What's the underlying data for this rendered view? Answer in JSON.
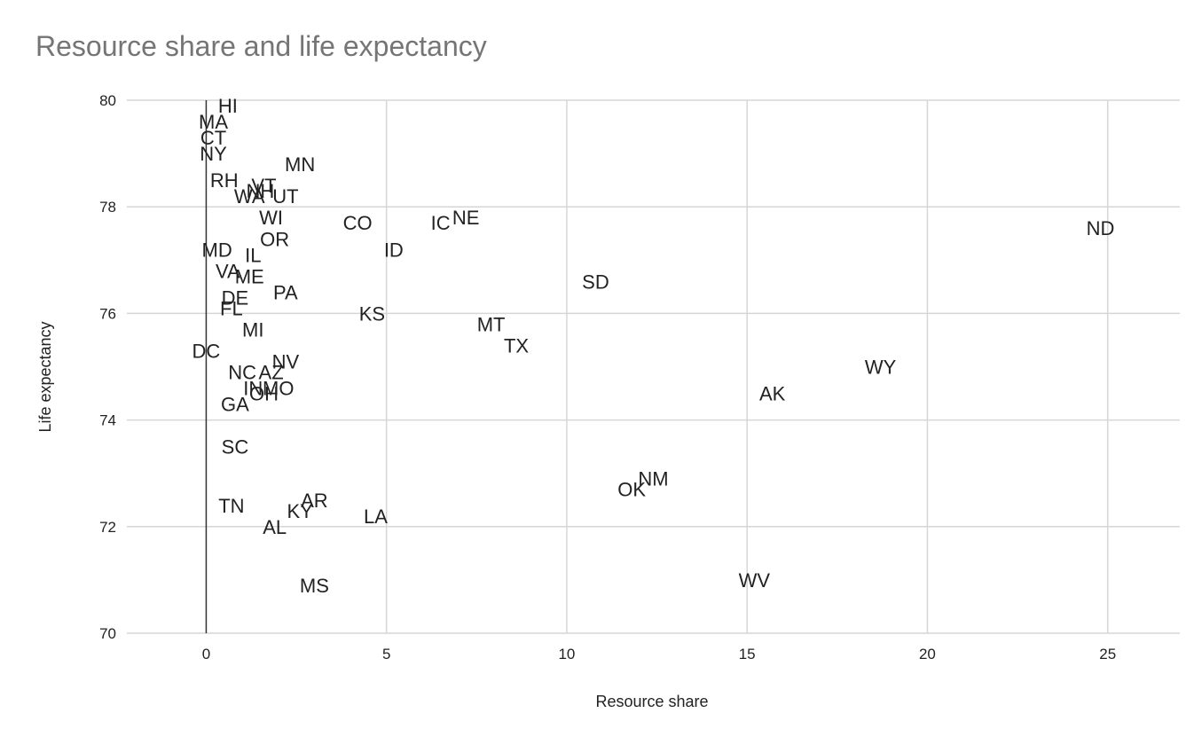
{
  "chart_data": {
    "type": "scatter",
    "title": "Resource share and life expectancy",
    "xlabel": "Resource share",
    "ylabel": "Life expectancy",
    "xlim": [
      -2.2,
      27
    ],
    "ylim": [
      70,
      80
    ],
    "xticks": [
      0,
      5,
      10,
      15,
      20,
      25
    ],
    "yticks": [
      70,
      72,
      74,
      76,
      78,
      80
    ],
    "grid": true,
    "legend": "none",
    "points": [
      {
        "label": "HI",
        "x": 0.6,
        "y": 79.9
      },
      {
        "label": "MA",
        "x": 0.2,
        "y": 79.6
      },
      {
        "label": "CT",
        "x": 0.2,
        "y": 79.3
      },
      {
        "label": "NY",
        "x": 0.2,
        "y": 79.0
      },
      {
        "label": "RH",
        "x": 0.5,
        "y": 78.5
      },
      {
        "label": "MN",
        "x": 2.6,
        "y": 78.8
      },
      {
        "label": "VT",
        "x": 1.6,
        "y": 78.4
      },
      {
        "label": "NH",
        "x": 1.5,
        "y": 78.3
      },
      {
        "label": "WA",
        "x": 1.2,
        "y": 78.2
      },
      {
        "label": "UT",
        "x": 2.2,
        "y": 78.2
      },
      {
        "label": "WI",
        "x": 1.8,
        "y": 77.8
      },
      {
        "label": "CO",
        "x": 4.2,
        "y": 77.7
      },
      {
        "label": "IC",
        "x": 6.5,
        "y": 77.7
      },
      {
        "label": "NE",
        "x": 7.2,
        "y": 77.8
      },
      {
        "label": "ND",
        "x": 24.8,
        "y": 77.6
      },
      {
        "label": "OR",
        "x": 1.9,
        "y": 77.4
      },
      {
        "label": "MD",
        "x": 0.3,
        "y": 77.2
      },
      {
        "label": "IL",
        "x": 1.3,
        "y": 77.1
      },
      {
        "label": "ID",
        "x": 5.2,
        "y": 77.2
      },
      {
        "label": "VA",
        "x": 0.6,
        "y": 76.8
      },
      {
        "label": "ME",
        "x": 1.2,
        "y": 76.7
      },
      {
        "label": "SD",
        "x": 10.8,
        "y": 76.6
      },
      {
        "label": "PA",
        "x": 2.2,
        "y": 76.4
      },
      {
        "label": "DE",
        "x": 0.8,
        "y": 76.3
      },
      {
        "label": "FL",
        "x": 0.7,
        "y": 76.1
      },
      {
        "label": "KS",
        "x": 4.6,
        "y": 76.0
      },
      {
        "label": "MT",
        "x": 7.9,
        "y": 75.8
      },
      {
        "label": "MI",
        "x": 1.3,
        "y": 75.7
      },
      {
        "label": "TX",
        "x": 8.6,
        "y": 75.4
      },
      {
        "label": "DC",
        "x": 0.0,
        "y": 75.3
      },
      {
        "label": "NV",
        "x": 2.2,
        "y": 75.1
      },
      {
        "label": "AZ",
        "x": 1.8,
        "y": 74.9
      },
      {
        "label": "NC",
        "x": 1.0,
        "y": 74.9
      },
      {
        "label": "WY",
        "x": 18.7,
        "y": 75.0
      },
      {
        "label": "IN",
        "x": 1.3,
        "y": 74.6
      },
      {
        "label": "MO",
        "x": 2.0,
        "y": 74.6
      },
      {
        "label": "OH",
        "x": 1.6,
        "y": 74.5
      },
      {
        "label": "AK",
        "x": 15.7,
        "y": 74.5
      },
      {
        "label": "GA",
        "x": 0.8,
        "y": 74.3
      },
      {
        "label": "SC",
        "x": 0.8,
        "y": 73.5
      },
      {
        "label": "NM",
        "x": 12.4,
        "y": 72.9
      },
      {
        "label": "OK",
        "x": 11.8,
        "y": 72.7
      },
      {
        "label": "AR",
        "x": 3.0,
        "y": 72.5
      },
      {
        "label": "TN",
        "x": 0.7,
        "y": 72.4
      },
      {
        "label": "KY",
        "x": 2.6,
        "y": 72.3
      },
      {
        "label": "LA",
        "x": 4.7,
        "y": 72.2
      },
      {
        "label": "AL",
        "x": 1.9,
        "y": 72.0
      },
      {
        "label": "WV",
        "x": 15.2,
        "y": 71.0
      },
      {
        "label": "MS",
        "x": 3.0,
        "y": 70.9
      }
    ]
  }
}
